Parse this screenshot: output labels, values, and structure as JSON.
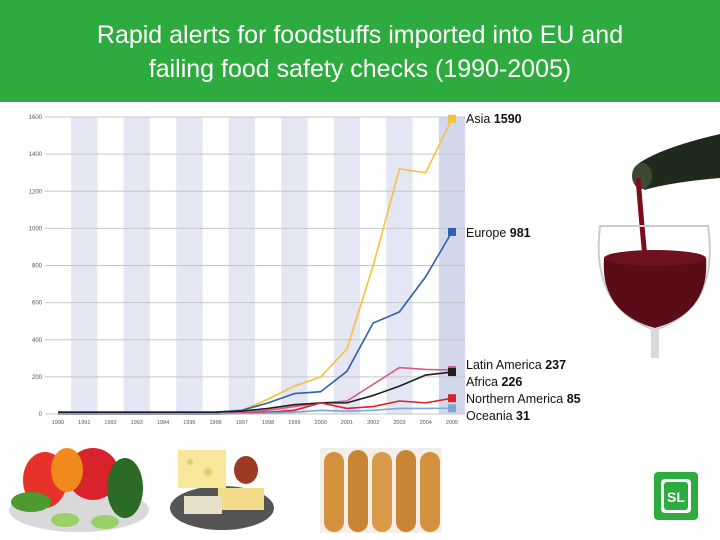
{
  "header": {
    "title_line1": "Rapid alerts for foodstuffs imported into EU and",
    "title_line2": "failing food safety checks (1990-2005)"
  },
  "logo": {
    "text": "SL"
  },
  "colors": {
    "header_bg": "#2eab3f",
    "asia": "#f6c03b",
    "europe": "#2f5fb0",
    "latin_america": "#d9588a",
    "africa": "#1e1e1e",
    "northern_america": "#d8232a",
    "oceania": "#79a9d4"
  },
  "chart_data": {
    "type": "line",
    "title": "",
    "xlabel": "",
    "ylabel": "",
    "x": [
      "1990",
      "1991",
      "1992",
      "1993",
      "1994",
      "1995",
      "1996",
      "1997",
      "1998",
      "1999",
      "2000",
      "2001",
      "2002",
      "2003",
      "2004",
      "2005"
    ],
    "yticks": [
      0,
      200,
      400,
      600,
      800,
      1000,
      1200,
      1400,
      1600
    ],
    "ylim": [
      0,
      1600
    ],
    "grid": true,
    "legend_placement": "right",
    "series": [
      {
        "name": "Asia",
        "end_label": "1590",
        "color": "#f6c03b",
        "values": [
          10,
          10,
          10,
          10,
          10,
          10,
          10,
          20,
          80,
          150,
          200,
          350,
          800,
          1320,
          1300,
          1590
        ]
      },
      {
        "name": "Europe",
        "end_label": "981",
        "color": "#2f5fb0",
        "values": [
          10,
          10,
          10,
          10,
          10,
          10,
          10,
          20,
          60,
          110,
          120,
          230,
          490,
          550,
          740,
          981
        ]
      },
      {
        "name": "Latin America",
        "end_label": "237",
        "color": "#d9588a",
        "values": [
          0,
          0,
          0,
          0,
          0,
          0,
          0,
          5,
          20,
          40,
          60,
          70,
          160,
          250,
          240,
          237
        ]
      },
      {
        "name": "Africa",
        "end_label": "226",
        "color": "#1e1e1e",
        "values": [
          10,
          10,
          10,
          10,
          10,
          10,
          10,
          15,
          30,
          50,
          60,
          60,
          100,
          150,
          210,
          226
        ]
      },
      {
        "name": "Northern America",
        "end_label": "85",
        "color": "#d8232a",
        "values": [
          0,
          0,
          0,
          0,
          0,
          0,
          0,
          5,
          10,
          20,
          60,
          30,
          40,
          70,
          60,
          85
        ]
      },
      {
        "name": "Oceania",
        "end_label": "31",
        "color": "#79a9d4",
        "values": [
          0,
          0,
          0,
          0,
          0,
          0,
          0,
          2,
          5,
          10,
          20,
          15,
          20,
          30,
          30,
          31
        ]
      }
    ]
  }
}
